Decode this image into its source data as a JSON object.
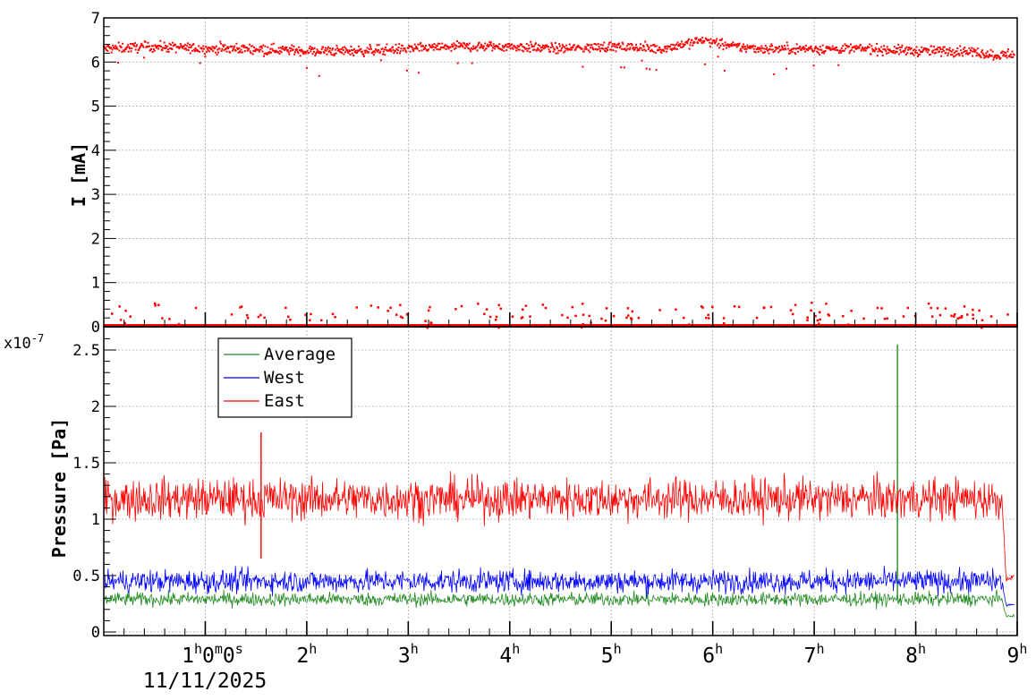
{
  "chart_data": [
    {
      "type": "scatter",
      "panel": "top",
      "ylabel": "I [mA]",
      "ylim": [
        0,
        7
      ],
      "yticks": [
        "0",
        "1",
        "2",
        "3",
        "4",
        "5",
        "6",
        "7"
      ],
      "xlim": [
        0.0,
        9.0
      ],
      "grid": true,
      "colors": {
        "East": "#ff0000"
      },
      "series": [
        {
          "name": "East",
          "band_mean": 6.3,
          "band_spread": 0.1,
          "x": [
            0,
            0.5,
            1,
            1.5,
            2,
            2.5,
            3,
            3.5,
            4,
            4.5,
            5,
            5.5,
            5.9,
            6.2,
            6.5,
            7,
            7.5,
            8,
            8.5,
            8.8,
            9
          ],
          "y": [
            6.3,
            6.35,
            6.3,
            6.3,
            6.25,
            6.25,
            6.3,
            6.35,
            6.35,
            6.3,
            6.35,
            6.3,
            6.5,
            6.35,
            6.3,
            6.3,
            6.3,
            6.25,
            6.25,
            6.15,
            6.2
          ],
          "low_current_baseline": 0.02,
          "low_current_outliers": [
            0.1,
            0.25,
            0.3,
            0.45,
            0.55
          ]
        }
      ]
    },
    {
      "type": "line",
      "panel": "bottom",
      "ylabel": "Pressure [Pa]",
      "exponent_label": "x10",
      "exponent_power": "-7",
      "scale": 1e-07,
      "ylim": [
        0,
        2.6
      ],
      "yticks": [
        "0",
        "0.5",
        "1",
        "1.5",
        "2",
        "2.5"
      ],
      "xlim": [
        0.0,
        9.0
      ],
      "grid": true,
      "legend_position": "top-left",
      "series": [
        {
          "name": "Average",
          "color": "#228b22",
          "mean": 0.29,
          "noise": 0.03,
          "features": [
            {
              "type": "spike",
              "x": 7.82,
              "y": 2.55
            },
            {
              "type": "drop",
              "x": 8.85,
              "y": 0.14
            }
          ]
        },
        {
          "name": "West",
          "color": "#0000ff",
          "mean": 0.45,
          "noise": 0.05,
          "features": [
            {
              "type": "drop",
              "x": 8.85,
              "y": 0.24
            }
          ]
        },
        {
          "name": "East",
          "color": "#ff0000",
          "mean": 1.18,
          "noise": 0.09,
          "features": [
            {
              "type": "spike",
              "x": 1.55,
              "y": 1.77
            },
            {
              "type": "dip",
              "x": 1.55,
              "y": 0.65
            },
            {
              "type": "drop",
              "x": 8.85,
              "y": 0.48
            }
          ]
        }
      ]
    }
  ],
  "x_axis": {
    "ticks": [
      {
        "x": 1,
        "hours": "1",
        "minutes": "0",
        "seconds": "0"
      },
      {
        "x": 2,
        "hours": "2"
      },
      {
        "x": 3,
        "hours": "3"
      },
      {
        "x": 4,
        "hours": "4"
      },
      {
        "x": 5,
        "hours": "5"
      },
      {
        "x": 6,
        "hours": "6"
      },
      {
        "x": 7,
        "hours": "7"
      },
      {
        "x": 8,
        "hours": "8"
      },
      {
        "x": 9,
        "hours": "9"
      }
    ],
    "unit_h": "h",
    "unit_m": "m",
    "unit_s": "s",
    "date": "11/11/2025"
  }
}
